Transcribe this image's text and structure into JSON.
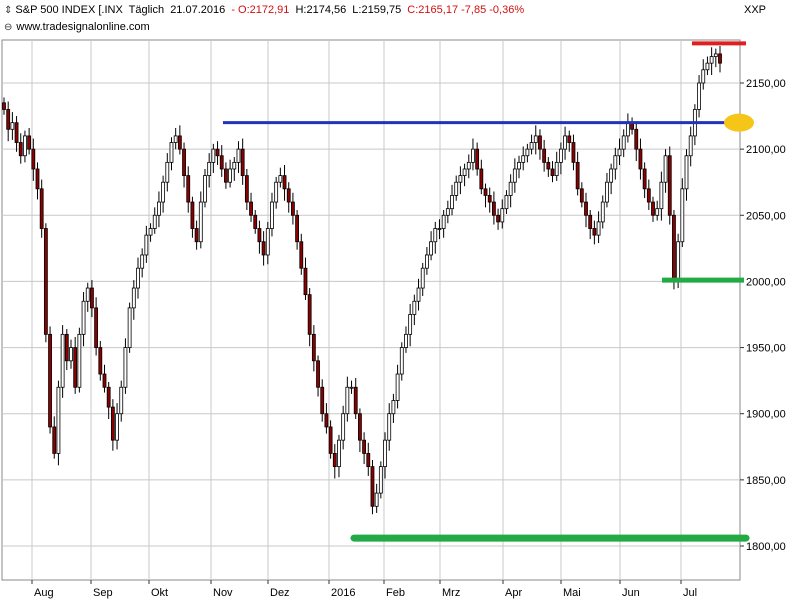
{
  "header": {
    "instrument": "S&P 500 INDEX [.INX",
    "interval": "Täglich",
    "date": "21.07.2016",
    "open": "- O:2172,91",
    "high": "H:2174,56",
    "low": "L:2159,75",
    "close": "C:2165,17 -7,85 -0,36%",
    "source": "www.tradesignalonline.com",
    "symbol": "XXP"
  },
  "colors": {
    "up_candle": "#ffffff",
    "down_candle": "#8b0000",
    "blue_line": "#2233bb",
    "red_line": "#e02020",
    "green_line": "#22aa44",
    "ellipse": "#f5c518",
    "grid": "#c8c8c8"
  },
  "chart_data": {
    "type": "candlestick",
    "x_labels": [
      "Aug",
      "Sep",
      "Okt",
      "Nov",
      "Dez",
      "2016",
      "Feb",
      "Mrz",
      "Apr",
      "Mai",
      "Jun",
      "Jul"
    ],
    "y_ticks": [
      "1800,00",
      "1850,00",
      "1900,00",
      "1950,00",
      "2000,00",
      "2050,00",
      "2100,00",
      "2150,00"
    ],
    "ylim": [
      1790,
      2200
    ],
    "horizontal_levels": [
      {
        "value": 2120,
        "color": "blue",
        "from": "Nov",
        "to": "Jul"
      },
      {
        "value": 2180,
        "color": "red",
        "from": "Jul",
        "to": "Jul"
      },
      {
        "value": 2001,
        "color": "green",
        "from": "Jun",
        "to": "Jul"
      },
      {
        "value": 1806,
        "color": "green",
        "from": "2016",
        "to": "Jul"
      }
    ],
    "close_path": [
      2130,
      2115,
      2120,
      2105,
      2095,
      2110,
      2100,
      2085,
      2070,
      2040,
      1960,
      1890,
      1870,
      1920,
      1960,
      1940,
      1950,
      1920,
      1960,
      1985,
      1995,
      1980,
      1950,
      1930,
      1920,
      1905,
      1880,
      1900,
      1920,
      1950,
      1980,
      1995,
      2010,
      2020,
      2035,
      2040,
      2050,
      2060,
      2075,
      2090,
      2105,
      2110,
      2100,
      2080,
      2060,
      2040,
      2030,
      2060,
      2080,
      2090,
      2100,
      2095,
      2085,
      2075,
      2085,
      2090,
      2100,
      2080,
      2060,
      2050,
      2040,
      2030,
      2020,
      2040,
      2060,
      2075,
      2080,
      2070,
      2060,
      2050,
      2030,
      2010,
      1990,
      1960,
      1940,
      1920,
      1900,
      1890,
      1870,
      1860,
      1880,
      1900,
      1920,
      1920,
      1900,
      1880,
      1870,
      1860,
      1830,
      1840,
      1860,
      1880,
      1900,
      1910,
      1930,
      1950,
      1960,
      1975,
      1985,
      1995,
      2010,
      2020,
      2030,
      2040,
      2040,
      2050,
      2055,
      2065,
      2075,
      2080,
      2085,
      2090,
      2100,
      2085,
      2070,
      2065,
      2060,
      2050,
      2045,
      2055,
      2065,
      2075,
      2085,
      2090,
      2095,
      2100,
      2105,
      2110,
      2100,
      2090,
      2085,
      2080,
      2090,
      2100,
      2110,
      2105,
      2090,
      2070,
      2060,
      2050,
      2040,
      2035,
      2045,
      2060,
      2075,
      2085,
      2095,
      2100,
      2110,
      2120,
      2115,
      2100,
      2085,
      2070,
      2060,
      2050,
      2055,
      2075,
      2095,
      2050,
      2000,
      2030,
      2070,
      2095,
      2110,
      2130,
      2150,
      2160,
      2165,
      2170,
      2172,
      2165
    ]
  }
}
